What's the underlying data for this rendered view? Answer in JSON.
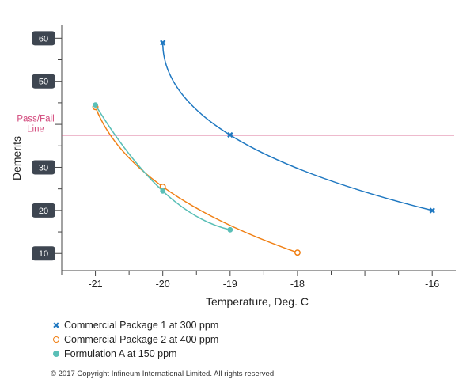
{
  "chart_data": {
    "type": "scatter",
    "xlabel": "Temperature, Deg. C",
    "ylabel": "Demerits",
    "xlim": [
      -21.5,
      -15.65
    ],
    "ylim": [
      6,
      63
    ],
    "x_ticks": [
      -21,
      -20,
      -19,
      -18,
      -16
    ],
    "x_tick_labels": [
      "-21",
      "-20",
      "-19",
      "-18",
      "-16"
    ],
    "y_ticks": [
      10,
      20,
      30,
      40,
      50,
      60
    ],
    "y_tick_labels": [
      "10",
      "20",
      "30",
      "",
      "50",
      "60"
    ],
    "reference_line": {
      "label": "Pass/Fail Line",
      "y": 37.5,
      "color": "#d2467a"
    },
    "grid": false,
    "legend_position": "bottom-left",
    "series": [
      {
        "name": "Commercial Package 1 at 300 ppm",
        "color": "#1f78c1",
        "marker": "x",
        "x": [
          -20,
          -19,
          -16
        ],
        "y": [
          59,
          37.5,
          20
        ]
      },
      {
        "name": "Commercial Package 2 at 400 ppm",
        "color": "#f07f13",
        "marker": "open-circle",
        "x": [
          -21,
          -20,
          -18
        ],
        "y": [
          44,
          25.5,
          10.2
        ]
      },
      {
        "name": "Formulation A at 150 ppm",
        "color": "#5abfb7",
        "marker": "dot",
        "x": [
          -21,
          -20,
          -19
        ],
        "y": [
          44.5,
          24.5,
          15.5
        ]
      }
    ]
  },
  "copyright": "© 2017 Copyright Infineum International Limited. All rights reserved."
}
